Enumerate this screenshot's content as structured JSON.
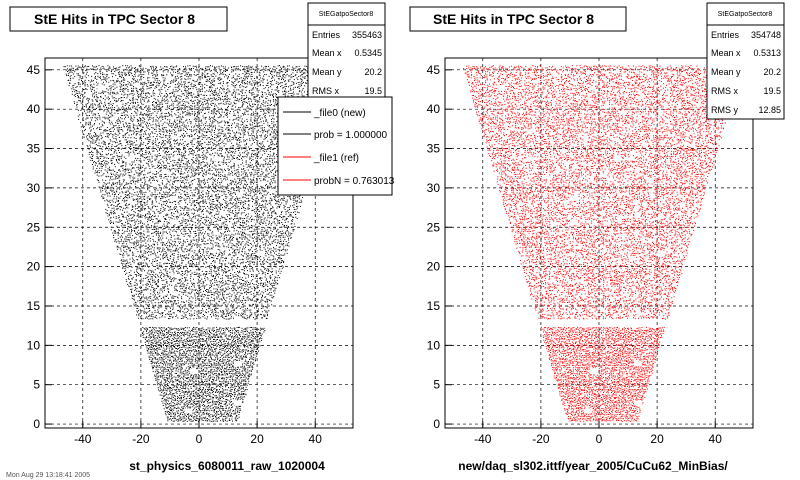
{
  "footer": "Mon Aug 29 13:18:41 2005",
  "colors": {
    "new": "#000000",
    "ref": "#ff0000",
    "grid": "#000000",
    "frame": "#000000"
  },
  "chart_data": [
    {
      "type": "scatter",
      "title": "StE Hits in TPC Sector 8",
      "xlabel": "st_physics_6080011_raw_1020004",
      "ylabel": "",
      "xlim": [
        -53,
        53
      ],
      "ylim": [
        -0.5,
        46.5
      ],
      "xticks": [
        "-40",
        "-20",
        "0",
        "20",
        "40"
      ],
      "yticks": [
        "0",
        "5",
        "10",
        "15",
        "20",
        "25",
        "30",
        "35",
        "40",
        "45"
      ],
      "grid": true,
      "marker_color": "#000000",
      "stats": {
        "name": "StEGatpoSector8",
        "rows": [
          {
            "label": "Entries",
            "value": "355463"
          },
          {
            "label": "Mean x",
            "value": "0.5345"
          },
          {
            "label": "Mean y",
            "value": "20.2"
          },
          {
            "label": "RMS x",
            "value": "19.5"
          }
        ]
      },
      "legend": {
        "position": "top-right",
        "entries": [
          {
            "label": "_file0 (new)",
            "color": "#000000"
          },
          {
            "label": "prob = 1.000000",
            "color": "#000000"
          },
          {
            "label": "_file1 (ref)",
            "color": "#ff0000"
          },
          {
            "label": "probN = 0.763013",
            "color": "#ff0000"
          }
        ]
      },
      "distribution": {
        "y_rows": [
          0.5,
          45.5
        ],
        "x_half_width_at_y0": 12,
        "x_half_width_at_y45": 48,
        "gap_y": [
          12.5,
          13.4
        ]
      }
    },
    {
      "type": "scatter",
      "title": "StE Hits in TPC Sector 8",
      "xlabel": "new/daq_sl302.ittf/year_2005/CuCu62_MinBias/",
      "ylabel": "",
      "xlim": [
        -53,
        53
      ],
      "ylim": [
        -0.5,
        46.5
      ],
      "xticks": [
        "-40",
        "-20",
        "0",
        "20",
        "40"
      ],
      "yticks": [
        "0",
        "5",
        "10",
        "15",
        "20",
        "25",
        "30",
        "35",
        "40",
        "45"
      ],
      "grid": true,
      "marker_color": "#ff0000",
      "stats": {
        "name": "StEGatpoSector8",
        "rows": [
          {
            "label": "Entries",
            "value": "354748"
          },
          {
            "label": "Mean x",
            "value": "0.5313"
          },
          {
            "label": "Mean y",
            "value": "20.2"
          },
          {
            "label": "RMS x",
            "value": "19.5"
          },
          {
            "label": "RMS y",
            "value": "12.85"
          }
        ]
      },
      "distribution": {
        "y_rows": [
          0.5,
          45.5
        ],
        "x_half_width_at_y0": 12,
        "x_half_width_at_y45": 48,
        "gap_y": [
          12.5,
          13.4
        ]
      }
    }
  ]
}
